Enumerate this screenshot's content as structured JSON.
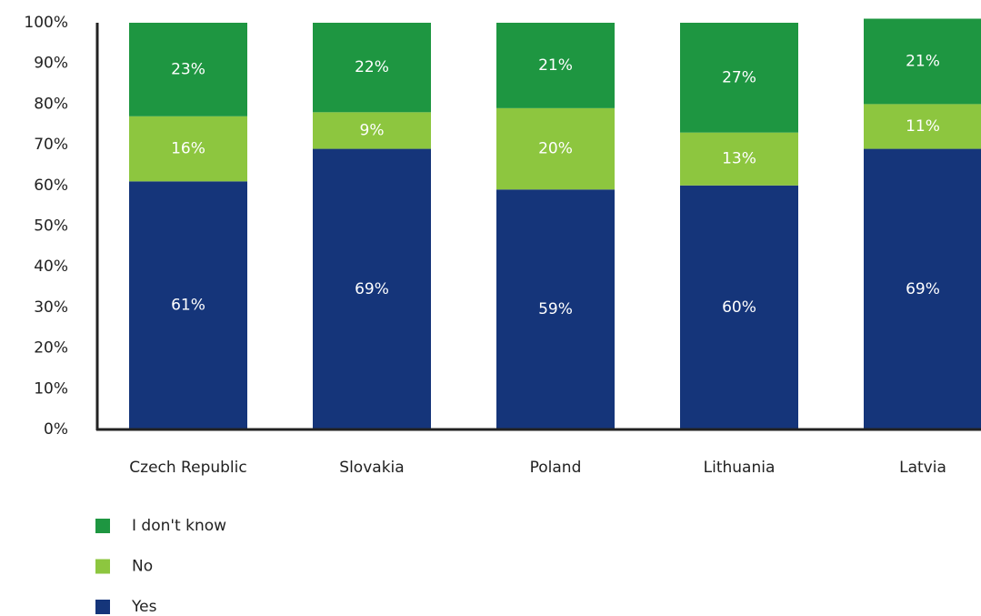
{
  "chart_data": {
    "type": "stacked_bar",
    "categories": [
      "Czech Republic",
      "Slovakia",
      "Poland",
      "Lithuania",
      "Latvia"
    ],
    "series": [
      {
        "name": "Yes",
        "color": "#15357a",
        "values": [
          61,
          69,
          59,
          60,
          69
        ],
        "value_labels": [
          "61%",
          "69%",
          "59%",
          "60%",
          "69%"
        ]
      },
      {
        "name": "No",
        "color": "#8dc63f",
        "values": [
          16,
          9,
          20,
          13,
          11
        ],
        "value_labels": [
          "16%",
          "9%",
          "20%",
          "13%",
          "11%"
        ]
      },
      {
        "name": "I don't know",
        "color": "#1e9641",
        "values": [
          23,
          22,
          21,
          27,
          21
        ],
        "value_labels": [
          "23%",
          "22%",
          "21%",
          "27%",
          "21%"
        ]
      }
    ],
    "ylim": [
      0,
      100
    ],
    "yticks": [
      {
        "value": 0,
        "label": "0%"
      },
      {
        "value": 10,
        "label": "10%"
      },
      {
        "value": 20,
        "label": "20%"
      },
      {
        "value": 30,
        "label": "30%"
      },
      {
        "value": 40,
        "label": "40%"
      },
      {
        "value": 50,
        "label": "50%"
      },
      {
        "value": 60,
        "label": "60%"
      },
      {
        "value": 70,
        "label": "70%"
      },
      {
        "value": 80,
        "label": "80%"
      },
      {
        "value": 90,
        "label": "90%"
      },
      {
        "value": 100,
        "label": "100%"
      }
    ],
    "grid": false,
    "legend": "bottom-left"
  }
}
